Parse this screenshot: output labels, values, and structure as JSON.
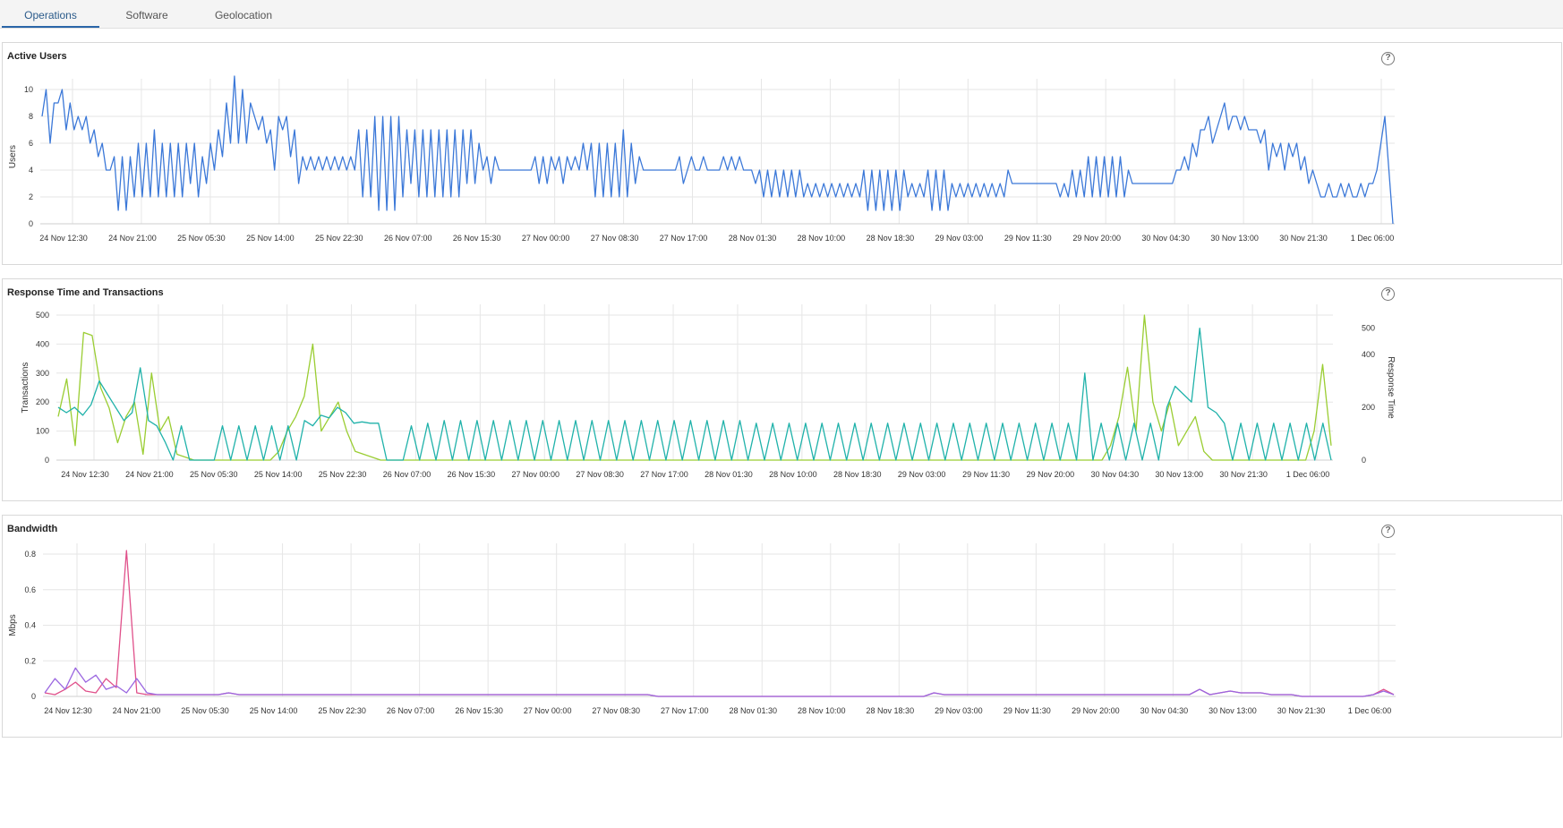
{
  "tabs": [
    {
      "label": "Operations",
      "active": true
    },
    {
      "label": "Software",
      "active": false
    },
    {
      "label": "Geolocation",
      "active": false
    }
  ],
  "help_icon_glyph": "?",
  "colors": {
    "active_tab_underline": "#2a66a8",
    "users_line": "#3b78d8",
    "transactions_line": "#9acd32",
    "response_time_line": "#20b2aa",
    "bandwidth_line_1": "#e0508a",
    "bandwidth_line_2": "#9a66e0",
    "grid": "#e6e6e6"
  },
  "panels": {
    "active_users": {
      "title": "Active Users"
    },
    "response_time": {
      "title": "Response Time and Transactions"
    },
    "bandwidth": {
      "title": "Bandwidth"
    }
  },
  "chart_data": [
    {
      "type": "line",
      "title": "Active Users",
      "ylabel": "Users",
      "xlabel": "",
      "ylim": [
        0,
        10
      ],
      "yticks": [
        "0",
        "2",
        "4",
        "6",
        "8",
        "10"
      ],
      "x_tick_labels": [
        "24 Nov 12:30",
        "24 Nov 21:00",
        "25 Nov 05:30",
        "25 Nov 14:00",
        "25 Nov 22:30",
        "26 Nov 07:00",
        "26 Nov 15:30",
        "27 Nov 00:00",
        "27 Nov 08:30",
        "27 Nov 17:00",
        "28 Nov 01:30",
        "28 Nov 10:00",
        "28 Nov 18:30",
        "29 Nov 03:00",
        "29 Nov 11:30",
        "29 Nov 20:00",
        "30 Nov 04:30",
        "30 Nov 13:00",
        "30 Nov 21:30",
        "1 Dec 06:00"
      ],
      "grid": true,
      "series": [
        {
          "values": [
            8,
            10,
            6,
            9,
            9,
            10,
            7,
            9,
            7,
            8,
            7,
            8,
            6,
            7,
            5,
            6,
            4,
            4,
            5,
            1,
            5,
            1,
            5,
            2,
            6,
            2,
            6,
            2,
            7,
            2,
            6,
            2,
            6,
            2,
            6,
            2,
            6,
            3,
            6,
            2,
            5,
            3,
            6,
            4,
            7,
            5,
            9,
            6,
            11,
            6,
            10,
            6,
            9,
            8,
            7,
            8,
            6,
            7,
            4,
            8,
            7,
            8,
            5,
            7,
            3,
            5,
            4,
            5,
            4,
            5,
            4,
            5,
            4,
            5,
            4,
            5,
            4,
            5,
            4,
            7,
            2,
            7,
            2,
            8,
            1,
            8,
            1,
            8,
            1,
            8,
            2,
            7,
            3,
            7,
            2,
            7,
            2,
            7,
            2,
            7,
            2,
            7,
            2,
            7,
            2,
            7,
            3,
            7,
            3,
            6,
            4,
            5,
            3,
            5,
            4,
            4,
            4,
            4,
            4,
            4,
            4,
            4,
            4,
            5,
            3,
            5,
            3,
            5,
            4,
            5,
            3,
            5,
            4,
            5,
            4,
            6,
            4,
            6,
            2,
            6,
            2,
            6,
            2,
            6,
            2,
            7,
            2,
            6,
            3,
            5,
            4,
            4,
            4,
            4,
            4,
            4,
            4,
            4,
            4,
            5,
            3,
            4,
            5,
            4,
            4,
            5,
            4,
            4,
            4,
            4,
            5,
            4,
            5,
            4,
            5,
            4,
            4,
            4,
            3,
            4,
            2,
            4,
            2,
            4,
            2,
            4,
            2,
            4,
            2,
            4,
            2,
            3,
            2,
            3,
            2,
            3,
            2,
            3,
            2,
            3,
            2,
            3,
            2,
            3,
            2,
            4,
            1,
            4,
            1,
            4,
            1,
            4,
            1,
            4,
            1,
            4,
            2,
            3,
            2,
            3,
            2,
            4,
            1,
            4,
            1,
            4,
            1,
            3,
            2,
            3,
            2,
            3,
            2,
            3,
            2,
            3,
            2,
            3,
            2,
            3,
            2,
            4,
            3,
            3,
            3,
            3,
            3,
            3,
            3,
            3,
            3,
            3,
            3,
            3,
            2,
            3,
            2,
            4,
            2,
            4,
            2,
            5,
            2,
            5,
            2,
            5,
            2,
            5,
            2,
            5,
            2,
            4,
            3,
            3,
            3,
            3,
            3,
            3,
            3,
            3,
            3,
            3,
            3,
            4,
            4,
            5,
            4,
            6,
            5,
            7,
            7,
            8,
            6,
            7,
            8,
            9,
            7,
            8,
            8,
            7,
            8,
            7,
            7,
            7,
            6,
            7,
            4,
            6,
            5,
            6,
            4,
            6,
            5,
            6,
            4,
            5,
            3,
            4,
            3,
            2,
            2,
            3,
            2,
            2,
            3,
            2,
            3,
            2,
            2,
            3,
            2,
            3,
            3,
            4,
            6,
            8,
            4,
            0
          ]
        }
      ]
    },
    {
      "type": "line",
      "title": "Response Time and Transactions",
      "ylabel": "Transactions",
      "y2label": "Response Time",
      "ylim": [
        0,
        500
      ],
      "y2lim": [
        0,
        550
      ],
      "yticks": [
        "0",
        "100",
        "200",
        "300",
        "400",
        "500"
      ],
      "y2ticks": [
        "0",
        "200",
        "400",
        "500"
      ],
      "x_tick_labels": [
        "24 Nov 12:30",
        "24 Nov 21:00",
        "25 Nov 05:30",
        "25 Nov 14:00",
        "25 Nov 22:30",
        "26 Nov 07:00",
        "26 Nov 15:30",
        "27 Nov 00:00",
        "27 Nov 08:30",
        "27 Nov 17:00",
        "28 Nov 01:30",
        "28 Nov 10:00",
        "28 Nov 18:30",
        "29 Nov 03:00",
        "29 Nov 11:30",
        "29 Nov 20:00",
        "30 Nov 04:30",
        "30 Nov 13:00",
        "30 Nov 21:30",
        "1 Dec 06:00"
      ],
      "grid": true,
      "series": [
        {
          "values": [
            150,
            280,
            50,
            440,
            430,
            250,
            180,
            60,
            150,
            200,
            20,
            300,
            100,
            150,
            20,
            10,
            0,
            0,
            0,
            0,
            0,
            0,
            0,
            0,
            0,
            0,
            30,
            100,
            150,
            220,
            400,
            100,
            150,
            200,
            100,
            30,
            20,
            10,
            0,
            0,
            0,
            0,
            0,
            0,
            0,
            0,
            0,
            0,
            0,
            0,
            0,
            0,
            0,
            0,
            0,
            0,
            0,
            0,
            0,
            0,
            0,
            0,
            0,
            0,
            0,
            0,
            0,
            0,
            0,
            0,
            0,
            0,
            0,
            0,
            0,
            0,
            0,
            0,
            0,
            0,
            0,
            0,
            0,
            0,
            0,
            0,
            0,
            0,
            0,
            0,
            0,
            0,
            0,
            0,
            0,
            0,
            0,
            0,
            0,
            0,
            0,
            0,
            0,
            0,
            0,
            0,
            0,
            0,
            0,
            0,
            0,
            0,
            0,
            0,
            0,
            0,
            0,
            0,
            0,
            0,
            0,
            0,
            0,
            0,
            50,
            150,
            320,
            100,
            500,
            200,
            100,
            200,
            50,
            100,
            150,
            30,
            0,
            0,
            0,
            0,
            0,
            0,
            0,
            0,
            0,
            0,
            0,
            0,
            100,
            330,
            50
          ]
        },
        {
          "values": [
            200,
            180,
            200,
            170,
            210,
            300,
            250,
            200,
            150,
            180,
            350,
            150,
            130,
            70,
            0,
            130,
            0,
            0,
            0,
            0,
            130,
            0,
            130,
            0,
            130,
            0,
            130,
            0,
            130,
            0,
            150,
            130,
            170,
            160,
            200,
            180,
            140,
            145,
            140,
            140,
            0,
            0,
            0,
            130,
            0,
            140,
            0,
            150,
            0,
            150,
            0,
            150,
            0,
            150,
            0,
            150,
            0,
            150,
            0,
            150,
            0,
            150,
            0,
            150,
            0,
            150,
            0,
            150,
            0,
            150,
            0,
            150,
            0,
            150,
            0,
            150,
            0,
            150,
            0,
            150,
            0,
            150,
            0,
            150,
            0,
            140,
            0,
            140,
            0,
            140,
            0,
            140,
            0,
            140,
            0,
            140,
            0,
            140,
            0,
            140,
            0,
            140,
            0,
            140,
            0,
            140,
            0,
            140,
            0,
            140,
            0,
            140,
            0,
            140,
            0,
            140,
            0,
            140,
            0,
            140,
            0,
            140,
            0,
            140,
            0,
            330,
            0,
            140,
            0,
            140,
            0,
            140,
            0,
            140,
            0,
            200,
            280,
            250,
            220,
            500,
            200,
            180,
            140,
            0,
            140,
            0,
            140,
            0,
            140,
            0,
            140,
            0,
            140,
            0,
            140,
            0
          ]
        }
      ]
    },
    {
      "type": "line",
      "title": "Bandwidth",
      "ylabel": "Mbps",
      "ylim": [
        0,
        0.8
      ],
      "yticks": [
        "0",
        "0.2",
        "0.4",
        "0.6",
        "0.8"
      ],
      "x_tick_labels": [
        "24 Nov 12:30",
        "24 Nov 21:00",
        "25 Nov 05:30",
        "25 Nov 14:00",
        "25 Nov 22:30",
        "26 Nov 07:00",
        "26 Nov 15:30",
        "27 Nov 00:00",
        "27 Nov 08:30",
        "27 Nov 17:00",
        "28 Nov 01:30",
        "28 Nov 10:00",
        "28 Nov 18:30",
        "29 Nov 03:00",
        "29 Nov 11:30",
        "29 Nov 20:00",
        "30 Nov 04:30",
        "30 Nov 13:00",
        "30 Nov 21:30",
        "1 Dec 06:00"
      ],
      "grid": true,
      "series": [
        {
          "values": [
            0.02,
            0.01,
            0.04,
            0.08,
            0.03,
            0.02,
            0.1,
            0.05,
            0.82,
            0.02,
            0.01,
            0.01,
            0.01,
            0.01,
            0.01,
            0.01,
            0.01,
            0.01,
            0.02,
            0.01,
            0.01,
            0.01,
            0.01,
            0.01,
            0.01,
            0.01,
            0.01,
            0.01,
            0.01,
            0.01,
            0.01,
            0.01,
            0.01,
            0.01,
            0.01,
            0.01,
            0.01,
            0.01,
            0.01,
            0.01,
            0.01,
            0.01,
            0.01,
            0.01,
            0.01,
            0.01,
            0.01,
            0.01,
            0.01,
            0.01,
            0.01,
            0.01,
            0.01,
            0.01,
            0.01,
            0.01,
            0.01,
            0.01,
            0.01,
            0.01,
            0,
            0,
            0,
            0,
            0,
            0,
            0,
            0,
            0,
            0,
            0,
            0,
            0,
            0,
            0,
            0,
            0,
            0,
            0,
            0,
            0,
            0,
            0,
            0,
            0,
            0,
            0,
            0.02,
            0.01,
            0.01,
            0.01,
            0.01,
            0.01,
            0.01,
            0.01,
            0.01,
            0.01,
            0.01,
            0.01,
            0.01,
            0.01,
            0.01,
            0.01,
            0.01,
            0.01,
            0.01,
            0.01,
            0.01,
            0.01,
            0.01,
            0.01,
            0.01,
            0.01,
            0.04,
            0.01,
            0.02,
            0.03,
            0.02,
            0.02,
            0.02,
            0.01,
            0.01,
            0.01,
            0,
            0,
            0,
            0,
            0,
            0,
            0,
            0.01,
            0.04,
            0.01
          ]
        },
        {
          "values": [
            0.02,
            0.1,
            0.04,
            0.16,
            0.08,
            0.12,
            0.04,
            0.06,
            0.02,
            0.1,
            0.02,
            0.01,
            0.01,
            0.01,
            0.01,
            0.01,
            0.01,
            0.01,
            0.02,
            0.01,
            0.01,
            0.01,
            0.01,
            0.01,
            0.01,
            0.01,
            0.01,
            0.01,
            0.01,
            0.01,
            0.01,
            0.01,
            0.01,
            0.01,
            0.01,
            0.01,
            0.01,
            0.01,
            0.01,
            0.01,
            0.01,
            0.01,
            0.01,
            0.01,
            0.01,
            0.01,
            0.01,
            0.01,
            0.01,
            0.01,
            0.01,
            0.01,
            0.01,
            0.01,
            0.01,
            0.01,
            0.01,
            0.01,
            0.01,
            0.01,
            0,
            0,
            0,
            0,
            0,
            0,
            0,
            0,
            0,
            0,
            0,
            0,
            0,
            0,
            0,
            0,
            0,
            0,
            0,
            0,
            0,
            0,
            0,
            0,
            0,
            0,
            0,
            0.02,
            0.01,
            0.01,
            0.01,
            0.01,
            0.01,
            0.01,
            0.01,
            0.01,
            0.01,
            0.01,
            0.01,
            0.01,
            0.01,
            0.01,
            0.01,
            0.01,
            0.01,
            0.01,
            0.01,
            0.01,
            0.01,
            0.01,
            0.01,
            0.01,
            0.01,
            0.04,
            0.01,
            0.02,
            0.03,
            0.02,
            0.02,
            0.02,
            0.01,
            0.01,
            0.01,
            0,
            0,
            0,
            0,
            0,
            0,
            0,
            0.01,
            0.03,
            0.01
          ]
        }
      ]
    }
  ]
}
